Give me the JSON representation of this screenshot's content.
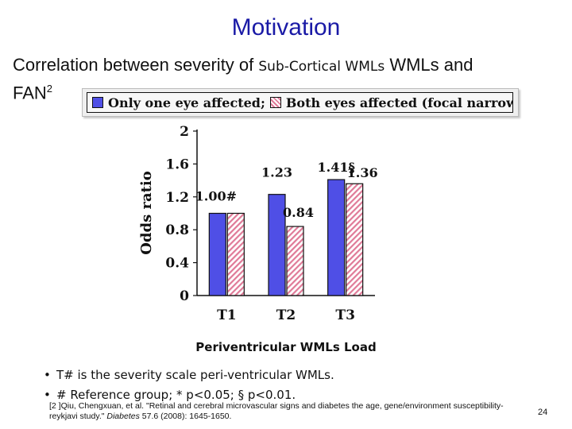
{
  "slide": {
    "title": "Motivation",
    "subtitle_part1": "Correlation between severity of ",
    "subtitle_inset": "Sub-Cortical WMLs",
    "subtitle_part2": " WMLs and",
    "subtitle_line2": "FAN",
    "subtitle_sup": "2",
    "bullets": [
      "T# is the severity scale peri-ventricular WMLs.",
      "# Reference group; * p<0.05; § p<0.01."
    ],
    "reference_line1": "[2 ]Qiu, Chengxuan, et al. \"Retinal and cerebral microvascular signs and diabetes the age, gene/environment susceptibility-",
    "reference_line2_a": "reykjavi study.\" ",
    "reference_journal": "Diabetes",
    "reference_line2_b": " 57.6 (2008): 1645-1650.",
    "page_number": "24",
    "colors": {
      "title": "#1a1aa6",
      "bar_blue": "#4f4fe6",
      "hatch": "#e07a98"
    }
  },
  "chart_data": {
    "type": "bar",
    "categories": [
      "T1",
      "T2",
      "T3"
    ],
    "series": [
      {
        "name": "Only one eye affected;",
        "values": [
          1.0,
          1.23,
          1.41
        ],
        "labels": [
          "1.00#",
          "1.23",
          "1.41§"
        ],
        "style": "solid-blue"
      },
      {
        "name": "Both eyes affected (focal narrowing)",
        "values": [
          1.0,
          0.84,
          1.36
        ],
        "labels": [
          "",
          "0.84",
          "1.36"
        ],
        "style": "hatched-pink"
      }
    ],
    "ylabel": "Odds ratio",
    "xlabel": "Periventricular WMLs Load",
    "ylim": [
      0,
      2
    ],
    "yticks": [
      "0",
      "0.4",
      "0.8",
      "1.2",
      "1.6",
      "2"
    ],
    "legend_position": "top"
  }
}
